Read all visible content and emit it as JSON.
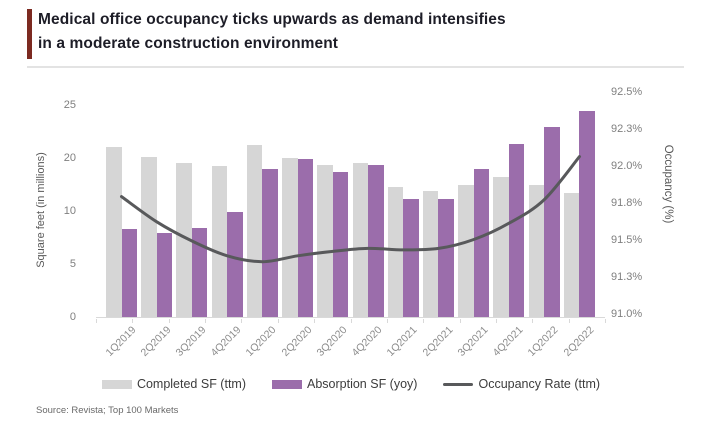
{
  "header": {
    "title_line1": "Medical office occupancy ticks upwards as demand intensifies",
    "title_line2": "in a moderate construction environment",
    "accent_color": "#7c2a21"
  },
  "source": "Source: Revista; Top 100 Markets",
  "chart_data": {
    "type": "bar",
    "subtype": "grouped-bar-with-line",
    "categories": [
      "1Q2019",
      "2Q2019",
      "3Q2019",
      "4Q2019",
      "1Q2020",
      "2Q2020",
      "3Q2020",
      "4Q2020",
      "1Q2021",
      "2Q2021",
      "3Q2021",
      "4Q2021",
      "1Q2022",
      "2Q2022"
    ],
    "series": [
      {
        "name": "Completed SF (ttm)",
        "type": "bar",
        "axis": "left",
        "color": "#d6d6d6",
        "values": [
          20.2,
          18.9,
          18.2,
          17.9,
          20.4,
          18.8,
          18.0,
          18.3,
          15.4,
          14.9,
          15.7,
          16.6,
          15.6,
          14.7
        ]
      },
      {
        "name": "Absorption SF (yoy)",
        "type": "bar",
        "axis": "left",
        "color": "#9b6dab",
        "values": [
          10.4,
          9.9,
          10.5,
          12.5,
          17.5,
          18.7,
          17.2,
          18.0,
          14.0,
          14.0,
          17.5,
          20.5,
          22.5,
          24.4
        ]
      },
      {
        "name": "Occupancy Rate (ttm)",
        "type": "line",
        "axis": "right",
        "color": "#58595b",
        "values": [
          91.8,
          91.63,
          91.5,
          91.4,
          91.36,
          91.4,
          91.43,
          91.45,
          91.44,
          91.45,
          91.51,
          91.62,
          91.78,
          92.07
        ]
      }
    ],
    "left_axis": {
      "title": "Square feet (in millions)",
      "range": [
        0,
        25
      ],
      "tick_labels_top_to_bottom": [
        "25",
        "20",
        "10",
        "5",
        "0"
      ]
    },
    "right_axis": {
      "title": "Occupancy (%)",
      "range": [
        91.0,
        92.5
      ],
      "tick_labels_top_to_bottom": [
        "92.5%",
        "92.3%",
        "92.0%",
        "91.8%",
        "91.5%",
        "91.3%",
        "91.0%"
      ]
    },
    "legend": [
      "Completed SF (ttm)",
      "Absorption SF (yoy)",
      "Occupancy Rate (ttm)"
    ],
    "grid": "off",
    "legend_position": "bottom-center"
  }
}
